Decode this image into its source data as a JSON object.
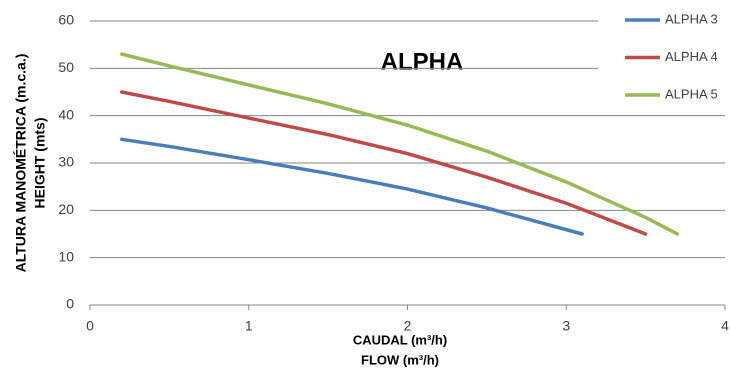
{
  "chart_data": {
    "type": "line",
    "title": "ALPHA",
    "y_label": [
      "ALTURA MANOMÉTRICA (m.c.a.)",
      "HEIGHT (mts)"
    ],
    "x_label": [
      "CAUDAL (m³/h)",
      "FLOW (m³/h)"
    ],
    "xlim": [
      0,
      4
    ],
    "xticks": [
      0,
      1,
      2,
      3,
      4
    ],
    "ylim": [
      0,
      60
    ],
    "yticks": [
      0,
      10,
      20,
      30,
      40,
      50,
      60
    ],
    "grid": true,
    "legend": "top-right",
    "series": [
      {
        "name": "ALPHA 3",
        "color": "#4a7ebb",
        "x": [
          0.2,
          0.5,
          1,
          1.5,
          2,
          2.5,
          3.1
        ],
        "values": [
          35,
          33.5,
          30.7,
          27.8,
          24.5,
          20.5,
          15
        ]
      },
      {
        "name": "ALPHA 4",
        "color": "#be4b48",
        "x": [
          0.2,
          0.5,
          1,
          1.5,
          2,
          2.5,
          3,
          3.5
        ],
        "values": [
          45,
          43,
          39.5,
          36,
          32,
          27,
          21.5,
          15
        ]
      },
      {
        "name": "ALPHA 5",
        "color": "#98b954",
        "x": [
          0.2,
          0.5,
          1,
          1.5,
          2,
          2.5,
          3,
          3.5,
          3.7
        ],
        "values": [
          53,
          50.5,
          46.5,
          42.5,
          38,
          32.5,
          26,
          18.5,
          15
        ]
      }
    ]
  }
}
